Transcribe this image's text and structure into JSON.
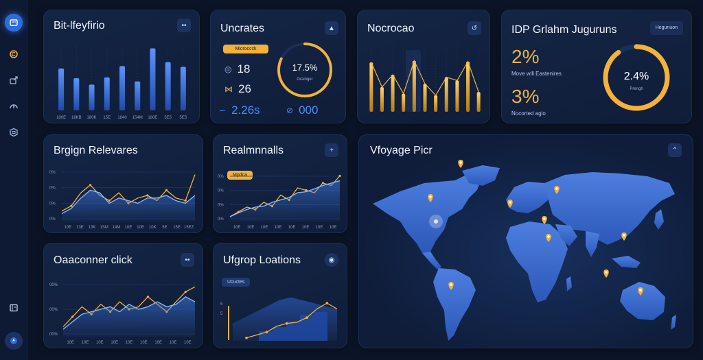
{
  "sidebar": {
    "icons": [
      "dashboard-icon",
      "coin-icon",
      "export-icon",
      "gauge-icon",
      "box-icon",
      "report-icon",
      "compass-icon"
    ]
  },
  "cards": {
    "c1": {
      "title": "Bit-lfeyfirio",
      "button": "••",
      "chart_data": {
        "type": "bar",
        "values": [
          5.2,
          4.0,
          3.2,
          4.1,
          5.5,
          3.6,
          7.7,
          6.0,
          5.4
        ],
        "categories": [
          "180E",
          "18KB",
          "180K",
          "15E",
          "1840",
          "154M",
          "180E",
          "5E5",
          "5E5"
        ],
        "ylim": [
          0,
          8
        ]
      }
    },
    "c2": {
      "title": "Uncrates",
      "button": "▲",
      "pill": "Microccck",
      "stats": [
        {
          "icon": "ring-icon",
          "value": "18"
        },
        {
          "icon": "fish-icon",
          "value": "26"
        },
        {
          "icon": "wave-icon",
          "value": "2.26s"
        }
      ],
      "ring": {
        "value": "17.5%",
        "label": "Grainger",
        "fraction": 0.82
      },
      "bottom_value": "000"
    },
    "c3": {
      "title": "Nocrocao",
      "button": "↺",
      "chart_data": {
        "type": "bar",
        "values": [
          6.0,
          3.0,
          4.5,
          2.2,
          6.2,
          3.4,
          2.0,
          4.2,
          3.8,
          6.1,
          2.4
        ],
        "ylim": [
          0,
          8
        ]
      }
    },
    "c4": {
      "title": "IDP Grlahm Juguruns",
      "tag": "Hegunuon",
      "big1": "2%",
      "sub1": "Move will Eastenires",
      "big2": "3%",
      "sub2": "Nocorted agio",
      "ring": {
        "value": "2.4%",
        "label": "Prengh",
        "fraction": 0.9
      }
    },
    "c5": {
      "title": "Brgign Relevares",
      "y_ticks": [
        "0%",
        "0%",
        "0%",
        "0%"
      ],
      "x_ticks": [
        "10E",
        "13E",
        "13K",
        "1SM",
        "14M",
        "10E",
        "10E",
        "10K",
        "5E",
        "15E",
        "15EZ"
      ],
      "chart_data": {
        "type": "line",
        "series": [
          {
            "values": [
              2,
              3,
              5.5,
              7,
              5,
              4,
              5.5,
              3.5,
              4.5,
              5,
              4,
              6,
              4.5,
              4,
              9
            ]
          },
          {
            "values": [
              1.5,
              2.5,
              4.5,
              6,
              5.5,
              3.5,
              4.5,
              4,
              3.5,
              4.5,
              4.5,
              5,
              4,
              3.5,
              5
            ]
          }
        ],
        "ylim": [
          0,
          10
        ]
      }
    },
    "c6": {
      "title": "Realmnnalls",
      "button": "+",
      "pill": "Mpdca",
      "y_ticks": [
        "0%",
        "0%",
        "0%",
        "0%"
      ],
      "x_ticks": [
        "10E",
        "10E",
        "10E",
        "10E",
        "10E",
        "10E",
        "10E",
        "10E"
      ],
      "chart_data": {
        "type": "area",
        "series": [
          {
            "values": [
              1,
              2,
              3,
              2.5,
              4,
              3.2,
              5.5,
              4.5,
              7,
              6.5,
              6,
              8,
              7.5,
              9.5
            ]
          },
          {
            "values": [
              1,
              1.8,
              2.5,
              3,
              3.2,
              4,
              4.5,
              5,
              6,
              6.2,
              6.8,
              7.5,
              8,
              8.5
            ]
          }
        ],
        "ylim": [
          0,
          10
        ]
      }
    },
    "c7": {
      "title": "Vfoyage Picr",
      "button": "⌃",
      "pins": 10
    },
    "c8": {
      "title": "Oaaconner click",
      "button": "••",
      "y_ticks": [
        "00%",
        "00%",
        "00%"
      ],
      "x_ticks": [
        "10E",
        "10E",
        "10E",
        "10E",
        "10E",
        "10E",
        "10E",
        "10E",
        "10E"
      ],
      "chart_data": {
        "type": "line",
        "series": [
          {
            "values": [
              2,
              4,
              6,
              4.5,
              6.5,
              5,
              7,
              5.5,
              6,
              8,
              6.5,
              5,
              7,
              9,
              10
            ]
          },
          {
            "values": [
              1.5,
              3,
              4.5,
              5,
              5.5,
              6,
              5,
              6.5,
              5.5,
              6,
              7,
              6,
              6.5,
              8,
              7
            ]
          }
        ],
        "ylim": [
          0,
          11
        ]
      }
    },
    "c9": {
      "title": "Ufgrop Loations",
      "button": "◉",
      "pill": "Ucuctes",
      "y_ticks": [
        "5",
        "5"
      ],
      "chart_data": {
        "type": "area",
        "series": [
          {
            "values": [
              3,
              4,
              5,
              6,
              7,
              7.5,
              7,
              6.5,
              6,
              5.5
            ]
          },
          {
            "values": [
              0.5,
              1,
              1.5,
              2.5,
              3,
              3.2,
              4,
              5.5,
              6.5,
              5.5
            ]
          }
        ],
        "ylim": [
          0,
          9
        ]
      }
    }
  },
  "colors": {
    "accent": "#f4b23a",
    "blue": "#3d7cf0",
    "bg": "#0b1426"
  }
}
